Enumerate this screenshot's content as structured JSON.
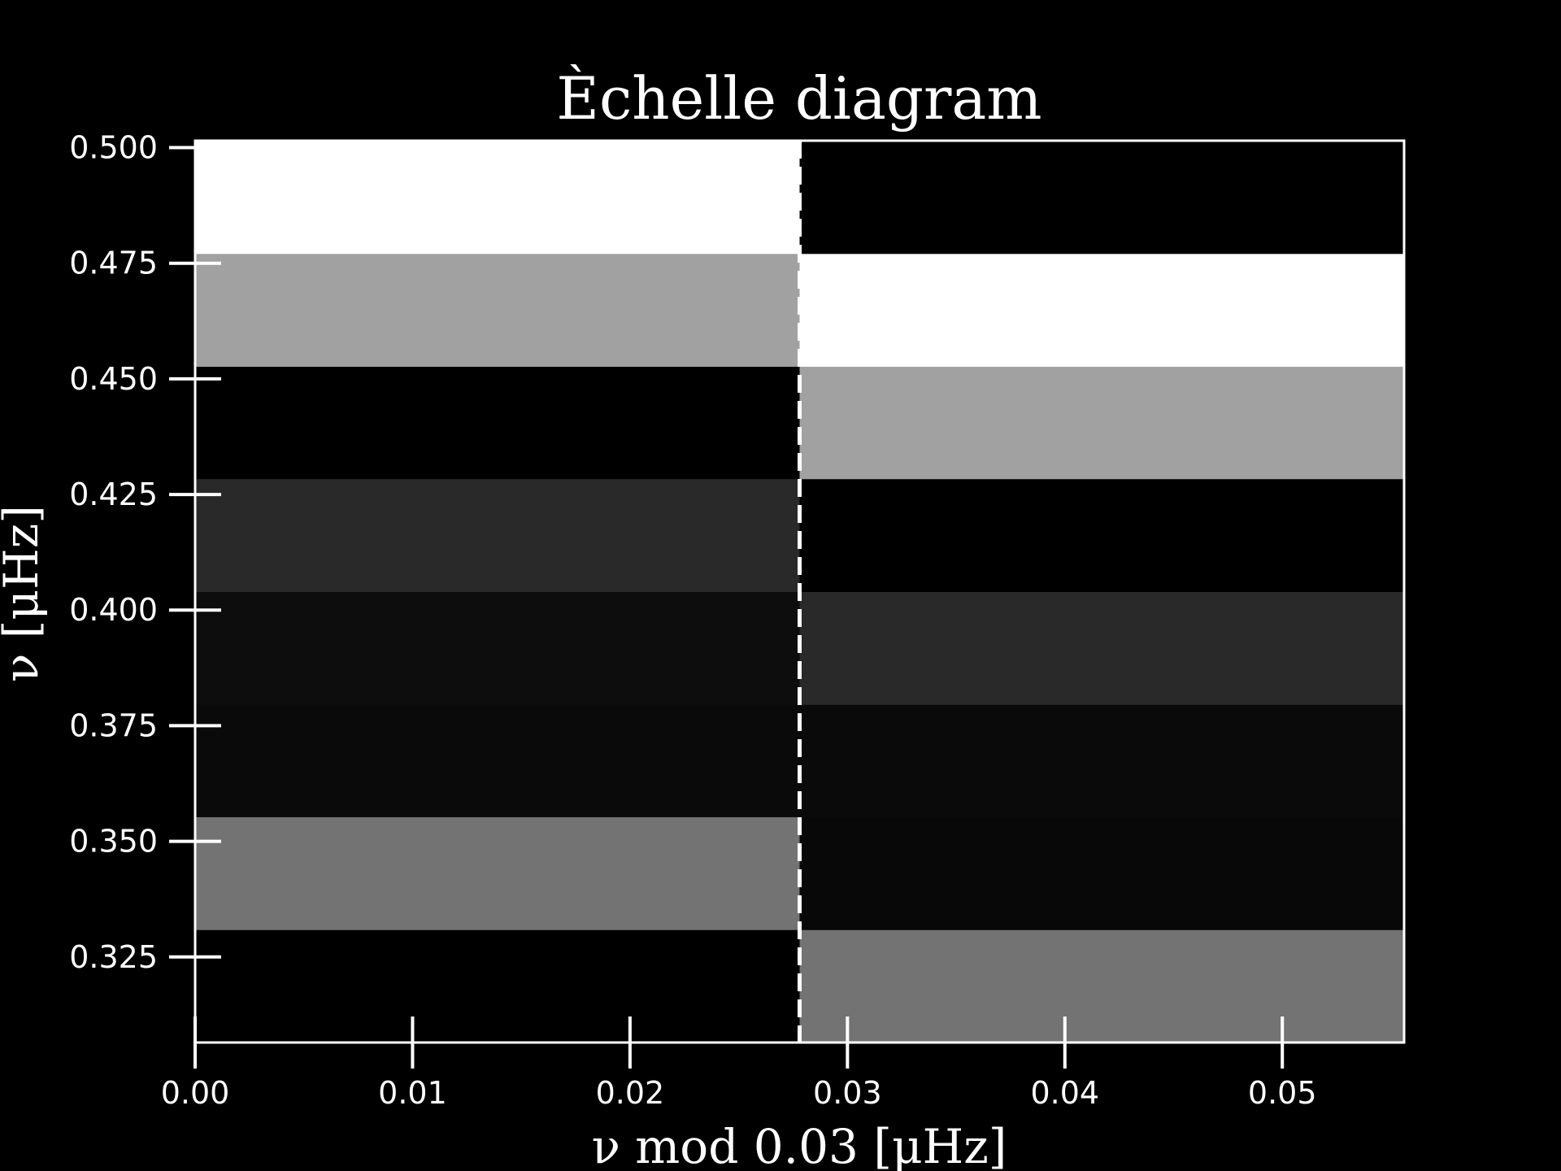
{
  "chart_data": {
    "type": "heatmap",
    "title": "Èchelle diagram",
    "xlabel": "ν mod 0.03 [μHz]",
    "ylabel": "ν [μHz]",
    "xlim": [
      0.0,
      0.0556
    ],
    "ylim": [
      0.3065,
      0.5015
    ],
    "xticks": [
      "0.00",
      "0.01",
      "0.02",
      "0.03",
      "0.04",
      "0.05"
    ],
    "xtick_values": [
      0.0,
      0.01,
      0.02,
      0.03,
      0.04,
      0.05
    ],
    "yticks": [
      "0.325",
      "0.350",
      "0.375",
      "0.400",
      "0.425",
      "0.450",
      "0.475",
      "0.500"
    ],
    "ytick_values": [
      0.325,
      0.35,
      0.375,
      0.4,
      0.425,
      0.45,
      0.475,
      0.5
    ],
    "grid": false,
    "colormap": "gray",
    "columns": [
      [
        0.0,
        0.0278
      ],
      [
        0.0278,
        0.0556
      ]
    ],
    "rows": [
      [
        0.3065,
        0.3309
      ],
      [
        0.3309,
        0.3553
      ],
      [
        0.3553,
        0.3796
      ],
      [
        0.3796,
        0.404
      ],
      [
        0.404,
        0.4284
      ],
      [
        0.4284,
        0.4527
      ],
      [
        0.4527,
        0.4771
      ],
      [
        0.4771,
        0.5015
      ]
    ],
    "values": [
      [
        0.0,
        0.45
      ],
      [
        0.45,
        0.03
      ],
      [
        0.04,
        0.04
      ],
      [
        0.05,
        0.16
      ],
      [
        0.16,
        0.0
      ],
      [
        0.0,
        0.63
      ],
      [
        0.63,
        1.0
      ],
      [
        1.0,
        0.0
      ]
    ],
    "reference_line": {
      "x": 0.0278,
      "style": "dashed",
      "color": "#ffffff"
    }
  }
}
